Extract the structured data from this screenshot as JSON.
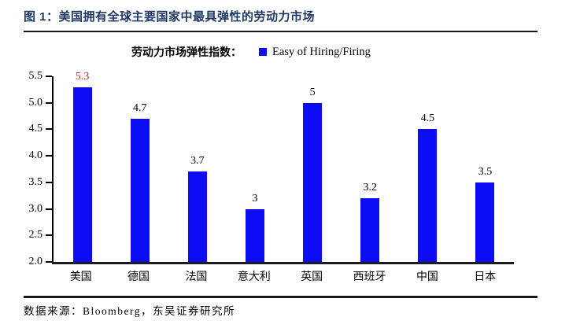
{
  "header": {
    "title": "图 1：美国拥有全球主要国家中最具弹性的劳动力市场",
    "title_color": "#1f3864"
  },
  "legend": {
    "prefix_label": "劳动力市场弹性指数：",
    "series_label": "Easy of Hiring/Firing",
    "marker_shape": "square",
    "marker_color": "#0d0df5"
  },
  "footer": {
    "source": "数据来源：Bloomberg，东吴证券研究所"
  },
  "chart_data": {
    "type": "bar",
    "title": "劳动力市场弹性指数",
    "series_name": "Easy of Hiring/Firing",
    "categories": [
      "美国",
      "德国",
      "法国",
      "意大利",
      "英国",
      "西班牙",
      "中国",
      "日本"
    ],
    "values": [
      5.3,
      4.7,
      3.7,
      3,
      5,
      3.2,
      4.5,
      3.5
    ],
    "value_labels": [
      "5.3",
      "4.7",
      "3.7",
      "3",
      "5",
      "3.2",
      "4.5",
      "3.5"
    ],
    "value_label_colors": [
      "#e02020",
      "#000000",
      "#000000",
      "#000000",
      "#000000",
      "#000000",
      "#000000",
      "#000000"
    ],
    "bar_color": "#0d0df5",
    "ylim": [
      2.0,
      5.5
    ],
    "y_tick_labels": [
      "5.5",
      "5.0",
      "4.5",
      "4.0",
      "3.5",
      "3.0",
      "2.5",
      "2.0"
    ],
    "grid": false,
    "legend_position": "top-center",
    "xlabel": "",
    "ylabel": ""
  }
}
